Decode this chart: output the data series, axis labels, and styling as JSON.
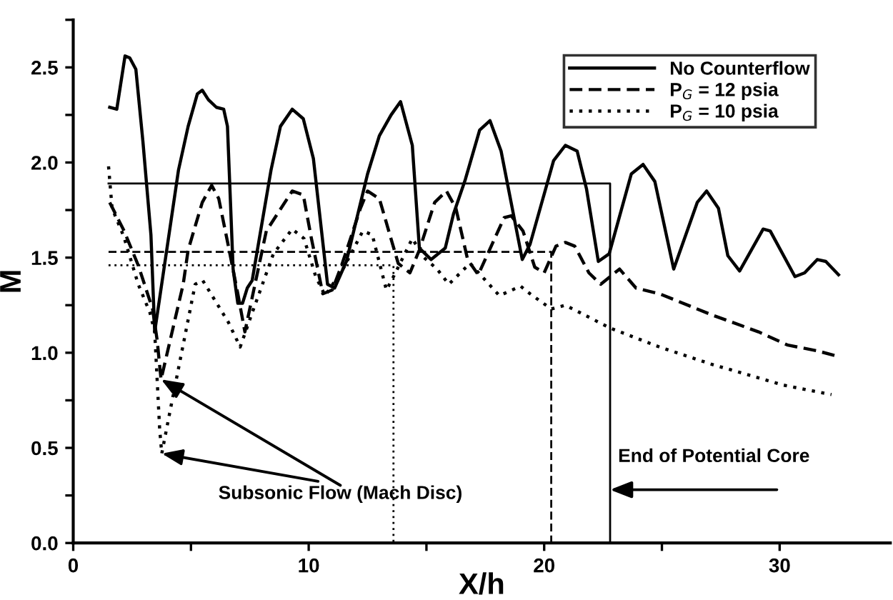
{
  "chart_data": {
    "type": "line",
    "xlabel": "X/h",
    "ylabel": "M",
    "xlim": [
      0,
      34.7
    ],
    "ylim": [
      0,
      2.75
    ],
    "xticks": [
      0,
      {
        "value": 5,
        "label": null
      },
      10,
      {
        "value": 15,
        "label": null
      },
      20,
      {
        "value": 25,
        "label": null
      },
      30
    ],
    "yticks": [
      {
        "value": 0,
        "label": "0.0"
      },
      {
        "value": 0.25,
        "label": null
      },
      {
        "value": 0.5,
        "label": "0.5"
      },
      {
        "value": 0.75,
        "label": null
      },
      {
        "value": 1.0,
        "label": "1.0"
      },
      {
        "value": 1.25,
        "label": null
      },
      {
        "value": 1.5,
        "label": "1.5"
      },
      {
        "value": 1.75,
        "label": null
      },
      {
        "value": 2.0,
        "label": "2.0"
      },
      {
        "value": 2.25,
        "label": null
      },
      {
        "value": 2.5,
        "label": "2.5"
      },
      {
        "value": 2.75,
        "label": null
      }
    ],
    "grid": false,
    "legend": "top right",
    "marker": "none",
    "series": [
      {
        "name": "No Counterflow",
        "color": "#000000",
        "line_style": "solid",
        "x": [
          1.55,
          1.85,
          2.2,
          2.4,
          2.66,
          2.96,
          3.3,
          3.46,
          4.47,
          4.88,
          5.27,
          5.48,
          5.74,
          6.08,
          6.39,
          6.55,
          6.79,
          6.99,
          7.19,
          7.39,
          7.6,
          8.4,
          8.8,
          9.3,
          9.77,
          10.2,
          10.8,
          11.1,
          11.6,
          12.5,
          13.0,
          13.5,
          13.9,
          14.4,
          14.7,
          15.2,
          15.8,
          16.15,
          16.65,
          17.26,
          17.7,
          18.17,
          19.07,
          19.4,
          20.4,
          20.9,
          21.4,
          21.8,
          22.3,
          22.76,
          23.7,
          24.2,
          24.7,
          25.5,
          26.5,
          26.9,
          27.4,
          27.8,
          28.3,
          29.3,
          29.6,
          30.65,
          31.06,
          31.6,
          31.96,
          32.5
        ],
        "values": [
          2.29,
          2.28,
          2.56,
          2.55,
          2.49,
          2.11,
          1.62,
          1.11,
          1.96,
          2.19,
          2.36,
          2.38,
          2.33,
          2.29,
          2.28,
          2.19,
          1.44,
          1.26,
          1.26,
          1.34,
          1.38,
          1.96,
          2.19,
          2.28,
          2.23,
          2.02,
          1.36,
          1.34,
          1.48,
          1.94,
          2.14,
          2.25,
          2.32,
          2.09,
          1.55,
          1.49,
          1.55,
          1.73,
          1.91,
          2.17,
          2.22,
          2.06,
          1.49,
          1.57,
          2.01,
          2.09,
          2.06,
          1.86,
          1.48,
          1.52,
          1.94,
          1.99,
          1.9,
          1.44,
          1.79,
          1.85,
          1.76,
          1.51,
          1.43,
          1.65,
          1.64,
          1.4,
          1.42,
          1.49,
          1.48,
          1.41
        ]
      },
      {
        "name": "P$_{G}$ = 12 psia",
        "color": "#000000",
        "line_style": "dashed",
        "x": [
          1.55,
          2.16,
          2.76,
          3.37,
          3.56,
          3.73,
          4.67,
          4.88,
          5.48,
          5.88,
          6.18,
          6.59,
          6.99,
          7.29,
          8.2,
          9.3,
          9.77,
          10.1,
          10.6,
          11.0,
          11.4,
          12.2,
          12.5,
          13.0,
          13.8,
          14.3,
          14.7,
          15.35,
          15.85,
          16.25,
          16.75,
          17.2,
          18.3,
          18.6,
          19.1,
          19.6,
          20.0,
          20.5,
          20.9,
          21.3,
          21.9,
          22.4,
          23.2,
          23.9,
          24.9,
          27.1,
          29.1,
          30.35,
          31.6,
          32.5
        ],
        "values": [
          1.79,
          1.64,
          1.46,
          1.23,
          1.07,
          0.86,
          1.36,
          1.54,
          1.79,
          1.88,
          1.81,
          1.56,
          1.31,
          1.11,
          1.64,
          1.85,
          1.83,
          1.61,
          1.31,
          1.33,
          1.46,
          1.76,
          1.85,
          1.81,
          1.47,
          1.42,
          1.54,
          1.79,
          1.85,
          1.76,
          1.49,
          1.41,
          1.71,
          1.72,
          1.64,
          1.45,
          1.42,
          1.56,
          1.58,
          1.56,
          1.42,
          1.36,
          1.44,
          1.34,
          1.31,
          1.2,
          1.11,
          1.04,
          1.01,
          0.98
        ]
      },
      {
        "name": "P$_{G}$ = 10 psia",
        "color": "#000000",
        "line_style": "dotted",
        "x": [
          1.5,
          1.65,
          2.15,
          2.76,
          3.26,
          3.46,
          3.67,
          3.76,
          4.17,
          4.57,
          5.18,
          5.5,
          6.59,
          7.09,
          7.6,
          8.5,
          9.3,
          9.8,
          10.3,
          10.7,
          11.5,
          12.3,
          12.7,
          13.3,
          13.6,
          14.4,
          14.9,
          15.45,
          15.95,
          16.85,
          18.1,
          19.0,
          19.4,
          20.3,
          20.9,
          22.8,
          24.9,
          27.1,
          30.15,
          32.2
        ],
        "values": [
          1.98,
          1.76,
          1.61,
          1.36,
          1.21,
          1.11,
          0.6,
          0.47,
          0.73,
          0.98,
          1.36,
          1.38,
          1.16,
          1.03,
          1.21,
          1.52,
          1.65,
          1.6,
          1.4,
          1.3,
          1.45,
          1.64,
          1.62,
          1.33,
          1.4,
          1.6,
          1.5,
          1.44,
          1.36,
          1.47,
          1.3,
          1.35,
          1.31,
          1.23,
          1.25,
          1.13,
          1.03,
          0.94,
          0.83,
          0.78
        ]
      },
      {
        "color": "#000000",
        "line_style": "solid",
        "x": [
          1.5,
          22.8,
          22.8
        ],
        "values": [
          1.89,
          1.89,
          0
        ]
      },
      {
        "color": "#000000",
        "line_style": "dashed",
        "x": [
          1.5,
          20.3,
          20.3
        ],
        "values": [
          1.53,
          1.53,
          0
        ]
      },
      {
        "color": "#000000",
        "line_style": "dotted",
        "x": [
          1.5,
          13.6,
          13.6
        ],
        "values": [
          1.46,
          1.46,
          0
        ]
      }
    ],
    "annotations": [
      {
        "text": "Subsonic Flow (Mach Disc)",
        "x": 3.76,
        "y": 0.47
      },
      {
        "text": "End of Potential Core",
        "x": 22.8,
        "y": 0.28
      }
    ]
  }
}
